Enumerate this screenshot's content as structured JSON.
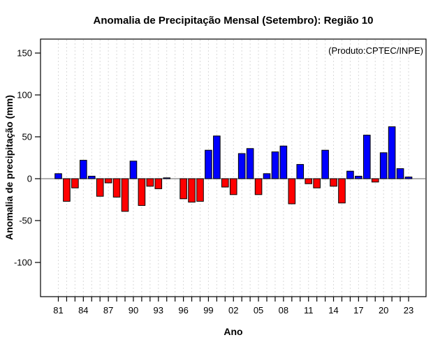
{
  "chart_data": {
    "type": "bar",
    "title": "Anomalia de Precipitação Mensal (Setembro): Região 10",
    "annotation": "(Produto:CPTEC/INPE)",
    "xlabel": "Ano",
    "ylabel": "Anomalia de precipitação (mm)",
    "categories": [
      "81",
      "82",
      "83",
      "84",
      "85",
      "86",
      "87",
      "88",
      "89",
      "90",
      "91",
      "92",
      "93",
      "94",
      "95",
      "96",
      "97",
      "98",
      "99",
      "00",
      "01",
      "02",
      "03",
      "04",
      "05",
      "06",
      "07",
      "08",
      "09",
      "10",
      "11",
      "12",
      "13",
      "14",
      "15",
      "16",
      "17",
      "18",
      "19",
      "20",
      "21",
      "22",
      "23"
    ],
    "values": [
      6,
      -27,
      -11,
      22,
      3,
      -21,
      -5,
      -22,
      -39,
      21,
      -32,
      -9,
      -12,
      1,
      0,
      -24,
      -28,
      -27,
      34,
      51,
      -10,
      -19,
      30,
      36,
      -19,
      6,
      32,
      39,
      -30,
      17,
      -6,
      -11,
      34,
      -9,
      -29,
      9,
      3,
      52,
      -4,
      31,
      62,
      12,
      2
    ],
    "yticks": [
      -100,
      -50,
      0,
      50,
      100,
      150
    ],
    "ylim": [
      -141,
      167
    ],
    "xtick_labels": [
      "81",
      "84",
      "87",
      "90",
      "93",
      "96",
      "99",
      "02",
      "05",
      "08",
      "11",
      "14",
      "17",
      "20",
      "23"
    ],
    "xtick_label_every": 3,
    "grid": "vertical-dashed",
    "legend_position": "none",
    "colors": {
      "positive": "#0000FF",
      "negative": "#FF0000",
      "bar_border": "#000000",
      "grid_line": "#D9D9D9",
      "zero_line": "#808080",
      "annotation_text": "#808080",
      "box_border": "#000000"
    }
  }
}
